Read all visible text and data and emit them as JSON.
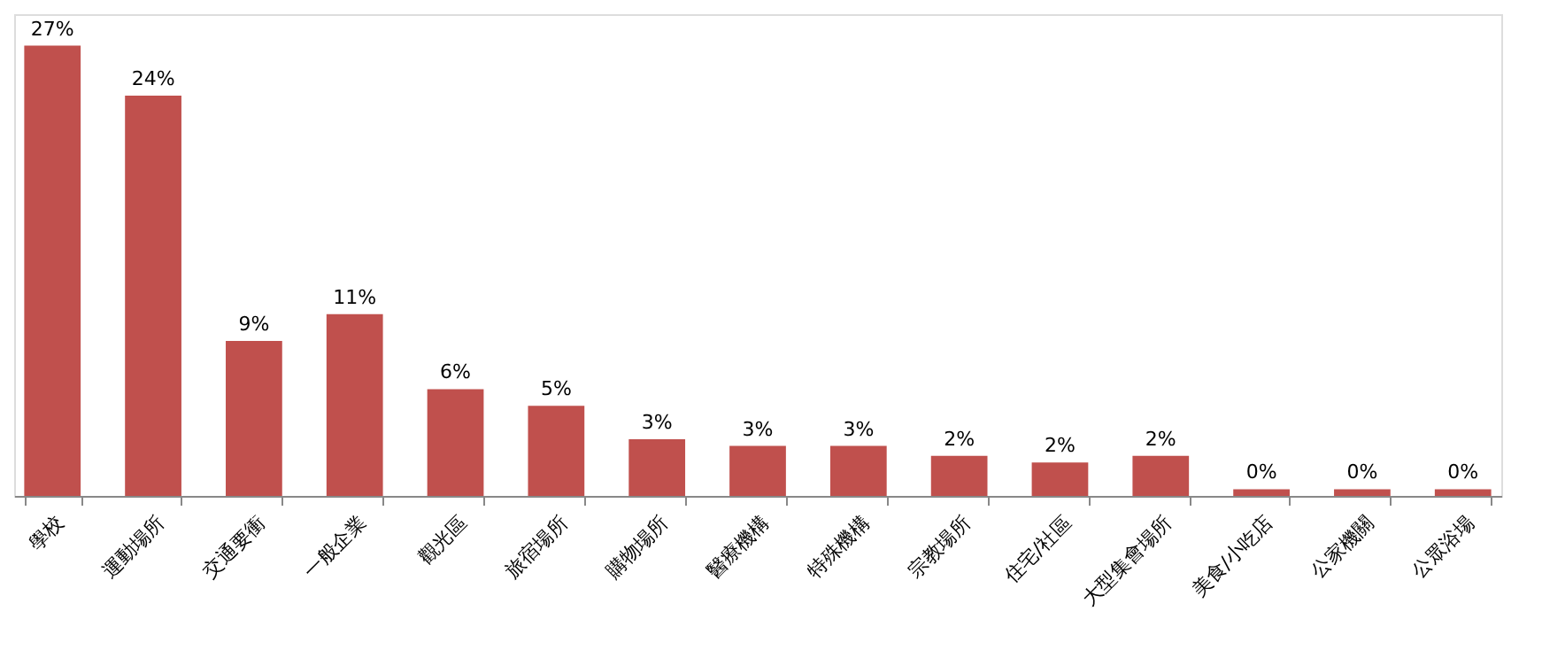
{
  "chart_data": {
    "type": "bar",
    "categories": [
      "學校",
      "運動場所",
      "交通要衝",
      "一般企業",
      "觀光區",
      "旅宿場所",
      "購物場所",
      "醫療機構",
      "特殊機構",
      "宗教場所",
      "住宅/社區",
      "大型集會場所",
      "美食/小吃店",
      "公家機關",
      "公眾浴場"
    ],
    "values": [
      27,
      24,
      9.3,
      10.9,
      6.4,
      5.4,
      3.4,
      3.0,
      3.0,
      2.4,
      2.0,
      2.4,
      0.4,
      0.4,
      0.4
    ],
    "value_labels": [
      "27%",
      "24%",
      "9%",
      "11%",
      "6%",
      "5%",
      "3%",
      "3%",
      "3%",
      "2%",
      "2%",
      "2%",
      "0%",
      "0%",
      "0%"
    ],
    "color": "#c0504d"
  }
}
